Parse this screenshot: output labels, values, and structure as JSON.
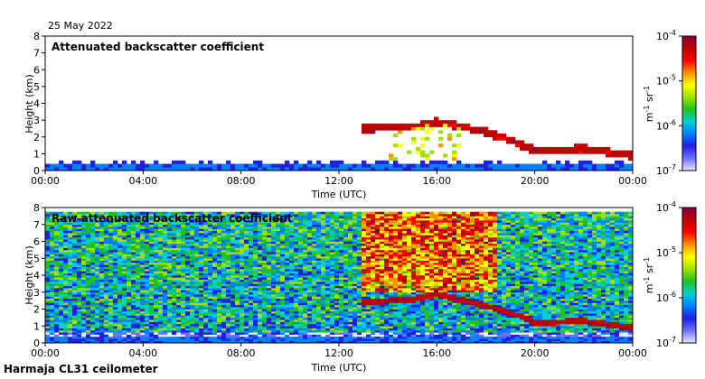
{
  "date_label": "25 May 2022",
  "footer_label": "Harmaja CL31 ceilometer",
  "colors": {
    "colormap": [
      "#e8e8ff",
      "#7070ff",
      "#2020e0",
      "#0080ff",
      "#00d0d0",
      "#20c020",
      "#a0e000",
      "#ffff00",
      "#ff9000",
      "#ff0000",
      "#c00000",
      "#800040"
    ],
    "background_low": "#ffffff"
  },
  "chart_data": [
    {
      "type": "heatmap",
      "title": "Attenuated backscatter coefficient",
      "xlabel": "Time (UTC)",
      "ylabel": "Height (km)",
      "xlim": [
        0,
        24
      ],
      "ylim": [
        0,
        8
      ],
      "x_tick_labels": [
        "00:00",
        "04:00",
        "08:00",
        "12:00",
        "16:00",
        "20:00",
        "00:00"
      ],
      "y_tick_labels": [
        "0",
        "1",
        "2",
        "3",
        "4",
        "5",
        "6",
        "7",
        "8"
      ],
      "colorbar": {
        "scale": "log",
        "range": [
          1e-07,
          0.0001
        ],
        "tick_mantissa": "10",
        "tick_exponents": [
          "-4",
          "-5",
          "-6",
          "-7"
        ],
        "unit_prefix": "m",
        "unit_exp1": "-1",
        "unit_mid": " sr",
        "unit_exp2": "-1"
      },
      "layers": [
        {
          "name": "boundary layer",
          "start": 0,
          "end": 24,
          "height_km": 0.5
        },
        {
          "name": "cloud layer",
          "start": 13,
          "end": 24,
          "height_profile": [
            [
              13,
              2.5
            ],
            [
              15,
              2.6
            ],
            [
              16,
              2.9
            ],
            [
              18,
              2.3
            ],
            [
              19,
              1.8
            ],
            [
              20,
              1.2
            ],
            [
              22,
              1.3
            ],
            [
              24,
              0.9
            ]
          ]
        }
      ]
    },
    {
      "type": "heatmap",
      "title": "Raw attenuated backscatter coefficient",
      "xlabel": "Time (UTC)",
      "ylabel": "Height (km)",
      "xlim": [
        0,
        24
      ],
      "ylim": [
        0,
        8
      ],
      "x_tick_labels": [
        "00:00",
        "04:00",
        "08:00",
        "12:00",
        "16:00",
        "20:00",
        "00:00"
      ],
      "y_tick_labels": [
        "0",
        "1",
        "2",
        "3",
        "4",
        "5",
        "6",
        "7",
        "8"
      ],
      "colorbar": {
        "scale": "log",
        "range": [
          1e-07,
          0.0001
        ],
        "tick_mantissa": "10",
        "tick_exponents": [
          "-4",
          "-5",
          "-6",
          "-7"
        ],
        "unit_prefix": "m",
        "unit_exp1": "-1",
        "unit_mid": " sr",
        "unit_exp2": "-1"
      },
      "layers": [
        {
          "name": "noise field",
          "start": 0,
          "end": 24,
          "height_km": 8
        },
        {
          "name": "cloud layer",
          "start": 13,
          "end": 24,
          "height_profile": [
            [
              13,
              2.4
            ],
            [
              15,
              2.6
            ],
            [
              16,
              2.9
            ],
            [
              18,
              2.2
            ],
            [
              19,
              1.8
            ],
            [
              20,
              1.2
            ],
            [
              22,
              1.3
            ],
            [
              24,
              0.9
            ]
          ]
        }
      ]
    }
  ]
}
